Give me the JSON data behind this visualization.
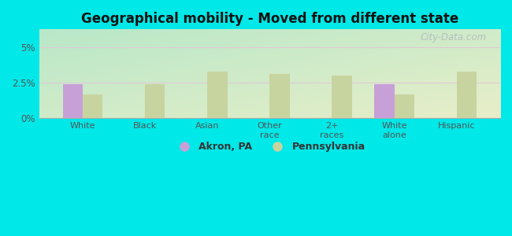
{
  "title": "Geographical mobility - Moved from different state",
  "categories": [
    "White",
    "Black",
    "Asian",
    "Other\nrace",
    "2+\nraces",
    "White\nalone",
    "Hispanic"
  ],
  "akron_values": [
    2.4,
    0,
    0,
    0,
    0,
    2.4,
    0
  ],
  "pa_values": [
    1.7,
    2.4,
    3.3,
    3.1,
    3.0,
    1.7,
    3.3
  ],
  "akron_color": "#c8a0d8",
  "pa_color": "#c8d4a0",
  "ylim": [
    0,
    6.25
  ],
  "yticks": [
    0,
    2.5,
    5.0
  ],
  "ytick_labels": [
    "0%",
    "2.5%",
    "5%"
  ],
  "grid_color": "#e0c8d8",
  "bg_color_topleft": "#b8e8c8",
  "bg_color_bottomright": "#e8eec8",
  "outer_bg": "#00e8e8",
  "bar_width": 0.32,
  "legend_akron": "Akron, PA",
  "legend_pa": "Pennsylvania",
  "watermark": "City-Data.com"
}
